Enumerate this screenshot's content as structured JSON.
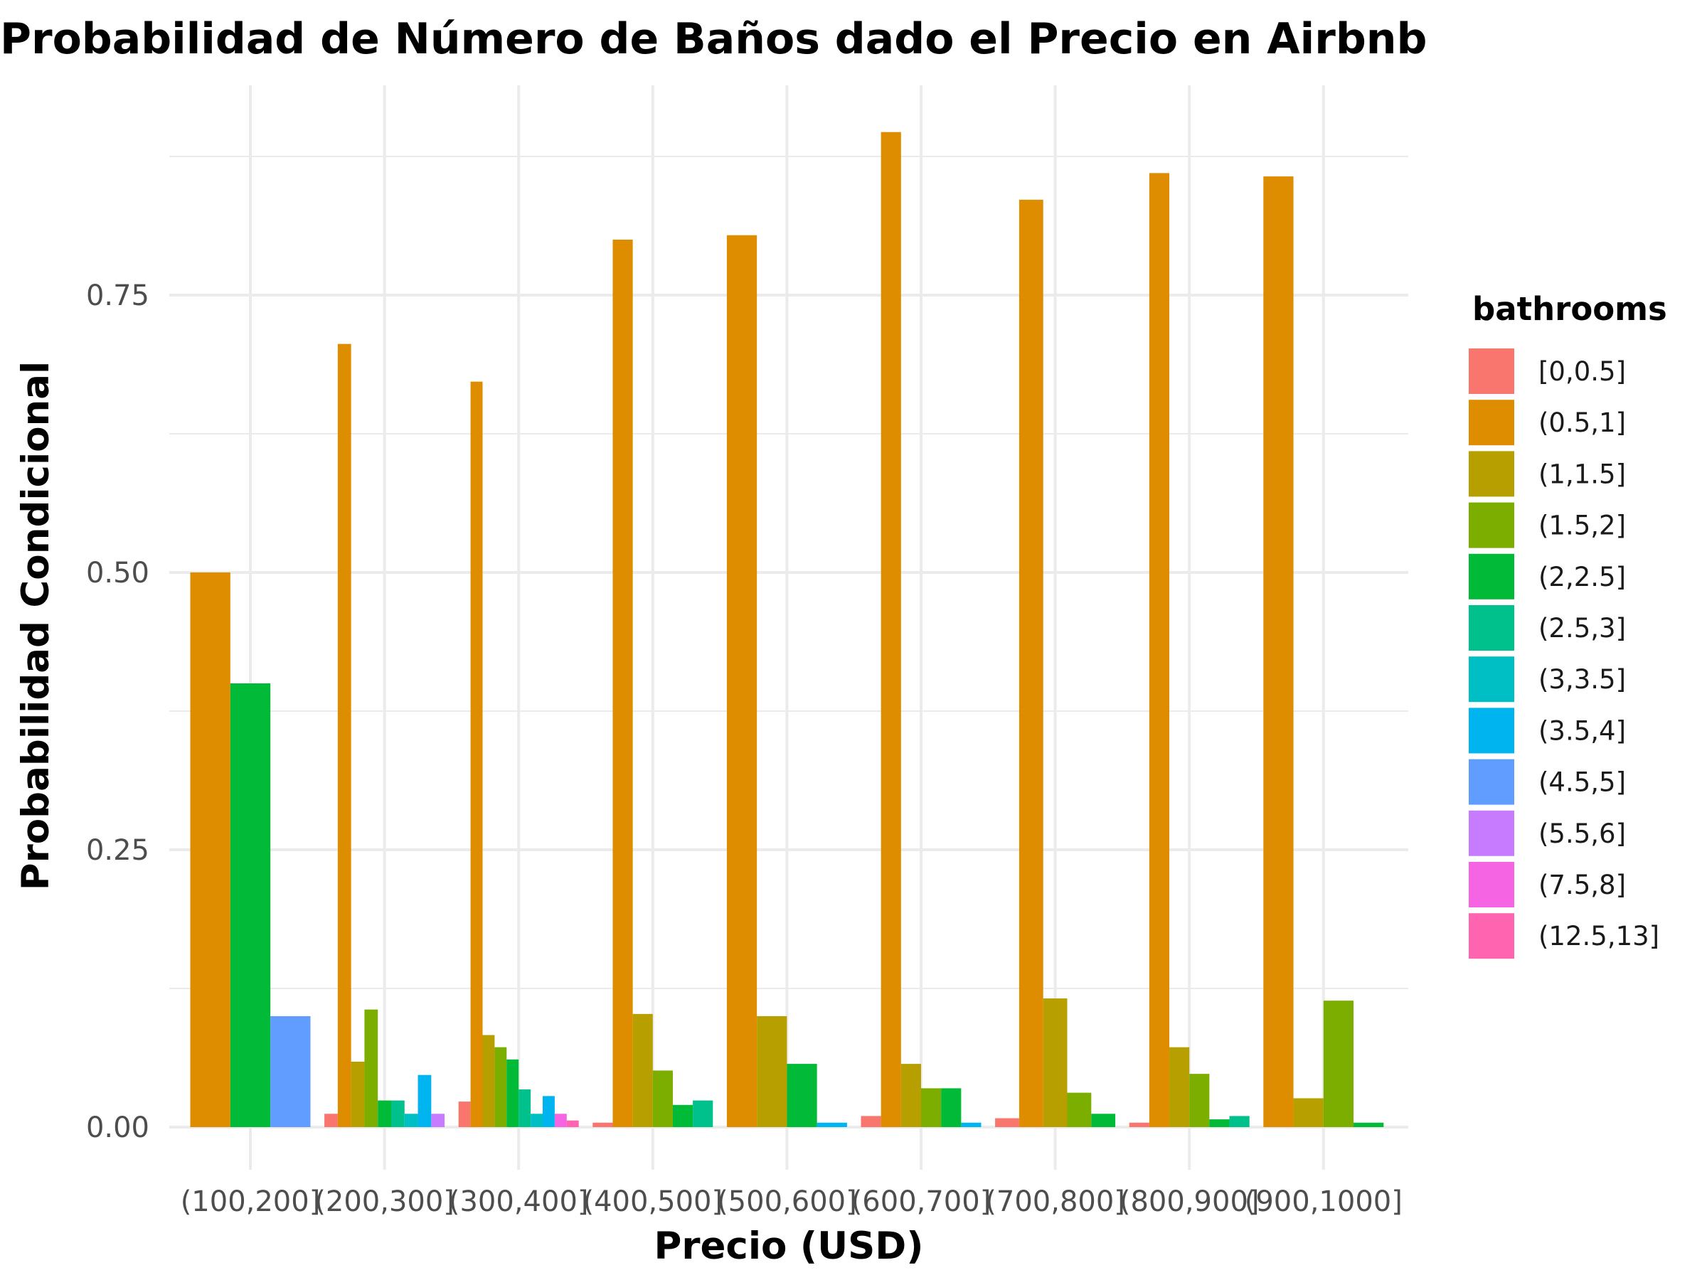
{
  "chart_data": {
    "type": "bar",
    "title": "Probabilidad de Número de Baños dado el Precio en Airbnb",
    "xlabel": "Precio (USD)",
    "ylabel": "Probabilidad Condicional",
    "ylim": [
      0,
      0.925
    ],
    "yticks": [
      0,
      0.25,
      0.5,
      0.75
    ],
    "ytick_labels": [
      "0.00",
      "0.25",
      "0.50",
      "0.75"
    ],
    "grid": true,
    "legend_title": "bathrooms",
    "legend_position": "right",
    "categories": [
      "(100,200]",
      "(200,300]",
      "(300,400]",
      "(400,500]",
      "(500,600]",
      "(600,700]",
      "(700,800]",
      "(800,900]",
      "(900,1000]"
    ],
    "series": [
      {
        "name": "[0,0.5]",
        "color": "#F8766D",
        "values": [
          null,
          0.012,
          0.023,
          0.004,
          null,
          0.01,
          0.008,
          0.004,
          null
        ]
      },
      {
        "name": "(0.5,1]",
        "color": "#DE8C00",
        "values": [
          0.5,
          0.706,
          0.672,
          0.8,
          0.804,
          0.897,
          0.836,
          0.86,
          0.857
        ]
      },
      {
        "name": "(1,1.5]",
        "color": "#B79F00",
        "values": [
          null,
          0.059,
          0.083,
          0.102,
          0.1,
          0.057,
          0.116,
          0.072,
          0.026
        ]
      },
      {
        "name": "(1.5,2]",
        "color": "#7CAE00",
        "values": [
          null,
          0.106,
          0.072,
          0.051,
          null,
          0.035,
          0.031,
          0.048,
          0.114
        ]
      },
      {
        "name": "(2,2.5]",
        "color": "#00BA38",
        "values": [
          0.4,
          0.024,
          0.061,
          0.02,
          0.057,
          0.035,
          0.012,
          0.007,
          0.004
        ]
      },
      {
        "name": "(2.5,3]",
        "color": "#00C08B",
        "values": [
          null,
          0.024,
          0.034,
          0.024,
          null,
          null,
          null,
          0.01,
          null
        ]
      },
      {
        "name": "(3,3.5]",
        "color": "#00BFC4",
        "values": [
          null,
          0.012,
          0.012,
          null,
          null,
          null,
          null,
          null,
          null
        ]
      },
      {
        "name": "(3.5,4]",
        "color": "#00B4F0",
        "values": [
          null,
          0.047,
          0.028,
          null,
          0.004,
          0.004,
          null,
          null,
          null
        ]
      },
      {
        "name": "(4.5,5]",
        "color": "#619CFF",
        "values": [
          0.1,
          null,
          null,
          null,
          null,
          null,
          null,
          null,
          null
        ]
      },
      {
        "name": "(5.5,6]",
        "color": "#C77CFF",
        "values": [
          null,
          0.012,
          null,
          null,
          null,
          null,
          null,
          null,
          null
        ]
      },
      {
        "name": "(7.5,8]",
        "color": "#F564E3",
        "values": [
          null,
          null,
          0.012,
          null,
          null,
          null,
          null,
          null,
          null
        ]
      },
      {
        "name": "(12.5,13]",
        "color": "#FF64B0",
        "values": [
          null,
          null,
          0.006,
          null,
          null,
          null,
          null,
          null,
          null
        ]
      }
    ]
  }
}
